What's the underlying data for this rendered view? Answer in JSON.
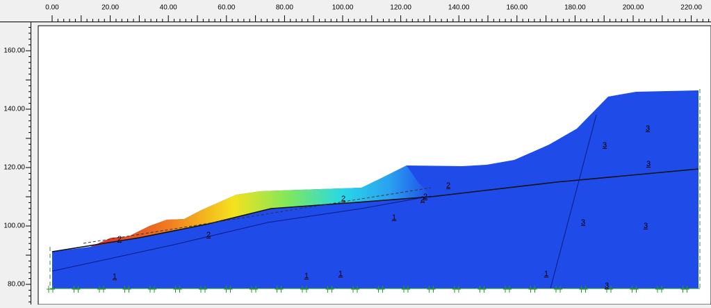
{
  "top_ruler": {
    "labels": [
      "0.00",
      "20.00",
      "40.00",
      "60.00",
      "80.00",
      "100.00",
      "120.00",
      "140.00",
      "160.00",
      "180.00",
      "200.00",
      "220.00"
    ]
  },
  "left_ruler": {
    "labels": [
      "160.00",
      "140.00",
      "120.00",
      "100.00",
      "80.00"
    ]
  },
  "region_labels": [
    "1",
    "1",
    "1",
    "1",
    "1",
    "2",
    "2",
    "2",
    "2",
    "2",
    "2",
    "3",
    "3",
    "3",
    "3",
    "3",
    "3"
  ]
}
